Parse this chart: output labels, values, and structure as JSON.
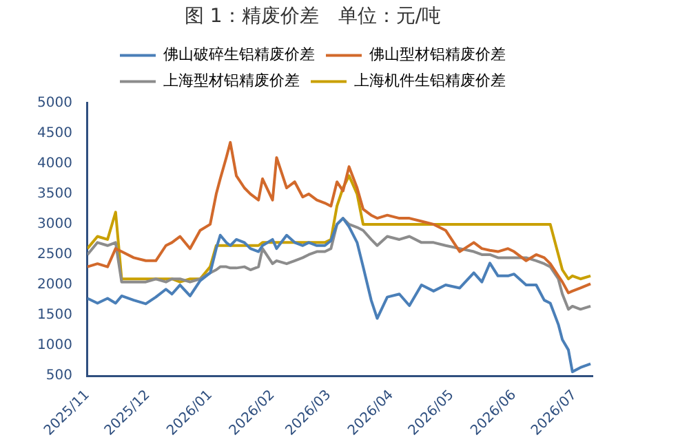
{
  "chart_data": {
    "type": "line",
    "title": "图 1：精废价差　单位：元/吨",
    "x": [
      "2025-11-01",
      "2025-11-06",
      "2025-11-11",
      "2025-11-15",
      "2025-11-18",
      "2025-11-24",
      "2025-11-30",
      "2025-12-05",
      "2025-12-10",
      "2025-12-13",
      "2025-12-17",
      "2025-12-22",
      "2025-12-27",
      "2026-01-01",
      "2026-01-04",
      "2026-01-06",
      "2026-01-09",
      "2026-01-11",
      "2026-01-14",
      "2026-01-18",
      "2026-01-21",
      "2026-01-25",
      "2026-01-27",
      "2026-02-01",
      "2026-02-03",
      "2026-02-08",
      "2026-02-12",
      "2026-02-16",
      "2026-02-19",
      "2026-02-23",
      "2026-02-27",
      "2026-03-02",
      "2026-03-05",
      "2026-03-08",
      "2026-03-11",
      "2026-03-15",
      "2026-03-18",
      "2026-03-22",
      "2026-03-25",
      "2026-03-30",
      "2026-04-05",
      "2026-04-10",
      "2026-04-16",
      "2026-04-22",
      "2026-04-28",
      "2026-05-05",
      "2026-05-12",
      "2026-05-16",
      "2026-05-20",
      "2026-05-24",
      "2026-05-29",
      "2026-06-01",
      "2026-06-07",
      "2026-06-12",
      "2026-06-16",
      "2026-06-19",
      "2026-06-23",
      "2026-06-25",
      "2026-06-28",
      "2026-06-30",
      "2026-07-04",
      "2026-07-09"
    ],
    "series": [
      {
        "name": "佛山破碎生铝精废价差",
        "color": "#4a7fb8",
        "values": [
          1780,
          1700,
          1780,
          1700,
          1820,
          1750,
          1690,
          1800,
          1930,
          1850,
          2000,
          1820,
          2070,
          2200,
          2600,
          2820,
          2700,
          2650,
          2750,
          2700,
          2600,
          2550,
          2650,
          2750,
          2600,
          2820,
          2700,
          2650,
          2700,
          2650,
          2650,
          2730,
          3000,
          3100,
          2960,
          2700,
          2300,
          1750,
          1450,
          1800,
          1850,
          1660,
          2000,
          1900,
          2000,
          1950,
          2200,
          2050,
          2360,
          2150,
          2150,
          2180,
          2000,
          2000,
          1750,
          1700,
          1350,
          1100,
          930,
          570,
          640,
          700
        ]
      },
      {
        "name": "佛山型材铝精废价差",
        "color": "#d2692b",
        "values": [
          2300,
          2350,
          2300,
          2600,
          2550,
          2450,
          2400,
          2400,
          2650,
          2700,
          2800,
          2600,
          2900,
          3000,
          3500,
          3750,
          4100,
          4350,
          3800,
          3600,
          3500,
          3400,
          3750,
          3400,
          4100,
          3600,
          3700,
          3450,
          3500,
          3400,
          3350,
          3300,
          3700,
          3550,
          3950,
          3600,
          3250,
          3150,
          3100,
          3150,
          3100,
          3100,
          3050,
          3000,
          2900,
          2550,
          2700,
          2600,
          2570,
          2550,
          2600,
          2550,
          2400,
          2500,
          2450,
          2350,
          2150,
          2050,
          1870,
          1900,
          1950,
          2020
        ]
      },
      {
        "name": "上海型材铝精废价差",
        "color": "#8c8c8c",
        "values": [
          2500,
          2700,
          2650,
          2700,
          2050,
          2050,
          2050,
          2100,
          2050,
          2100,
          2100,
          2050,
          2100,
          2200,
          2250,
          2300,
          2300,
          2280,
          2280,
          2300,
          2250,
          2300,
          2600,
          2350,
          2400,
          2350,
          2400,
          2450,
          2500,
          2550,
          2550,
          2600,
          3000,
          3100,
          3000,
          2950,
          2900,
          2750,
          2650,
          2800,
          2750,
          2800,
          2700,
          2700,
          2650,
          2600,
          2550,
          2500,
          2500,
          2450,
          2450,
          2450,
          2450,
          2400,
          2350,
          2300,
          2100,
          1850,
          1600,
          1650,
          1600,
          1650
        ]
      },
      {
        "name": "上海机件生铝精废价差",
        "color": "#c9a000",
        "values": [
          2600,
          2800,
          2750,
          3200,
          2100,
          2100,
          2100,
          2100,
          2100,
          2100,
          2050,
          2100,
          2100,
          2300,
          2650,
          2650,
          2650,
          2650,
          2650,
          2650,
          2650,
          2650,
          2700,
          2700,
          2700,
          2700,
          2700,
          2700,
          2700,
          2700,
          2700,
          2750,
          3300,
          3600,
          3800,
          3500,
          3000,
          3000,
          3000,
          3000,
          3000,
          3000,
          3000,
          3000,
          3000,
          3000,
          3000,
          3000,
          3000,
          3000,
          3000,
          3000,
          3000,
          3000,
          3000,
          3000,
          2500,
          2250,
          2100,
          2150,
          2100,
          2150
        ]
      }
    ],
    "xlim": [
      "2025-11-01",
      "2026-07-10"
    ],
    "xticks": [
      {
        "value": "2025-11",
        "label": "2025/11"
      },
      {
        "value": "2025-12",
        "label": "2025/12"
      },
      {
        "value": "2026-01",
        "label": "2026/01"
      },
      {
        "value": "2026-02",
        "label": "2026/02"
      },
      {
        "value": "2026-03",
        "label": "2026/03"
      },
      {
        "value": "2026-04",
        "label": "2026/04"
      },
      {
        "value": "2026-05",
        "label": "2026/05"
      },
      {
        "value": "2026-06",
        "label": "2026/06"
      },
      {
        "value": "2026-07",
        "label": "2026/07"
      }
    ],
    "ylim": [
      500,
      5000
    ],
    "yticks": [
      500,
      1000,
      1500,
      2000,
      2500,
      3000,
      3500,
      4000,
      4500,
      5000
    ],
    "grid": false,
    "legend": "top",
    "marker": "none",
    "line_style": "solid"
  }
}
